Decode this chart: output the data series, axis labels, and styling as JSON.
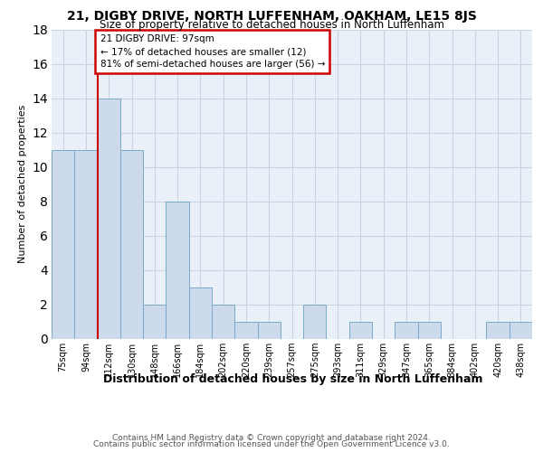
{
  "title": "21, DIGBY DRIVE, NORTH LUFFENHAM, OAKHAM, LE15 8JS",
  "subtitle": "Size of property relative to detached houses in North Luffenham",
  "xlabel": "Distribution of detached houses by size in North Luffenham",
  "ylabel": "Number of detached properties",
  "footnote1": "Contains HM Land Registry data © Crown copyright and database right 2024.",
  "footnote2": "Contains public sector information licensed under the Open Government Licence v3.0.",
  "bin_labels": [
    "75sqm",
    "94sqm",
    "112sqm",
    "130sqm",
    "148sqm",
    "166sqm",
    "184sqm",
    "202sqm",
    "220sqm",
    "239sqm",
    "257sqm",
    "275sqm",
    "293sqm",
    "311sqm",
    "329sqm",
    "347sqm",
    "365sqm",
    "384sqm",
    "402sqm",
    "420sqm",
    "438sqm"
  ],
  "values": [
    11,
    11,
    14,
    11,
    2,
    8,
    3,
    2,
    1,
    1,
    0,
    2,
    0,
    1,
    0,
    1,
    1,
    0,
    0,
    1,
    1
  ],
  "bar_color": "#ccdaeb",
  "bar_edge_color": "#7aaac8",
  "bar_edge_width": 0.7,
  "grid_color": "#c8d4e4",
  "background_color": "#eaf0f8",
  "annotation_box_color": "#cc0000",
  "annotation_line1": "21 DIGBY DRIVE: 97sqm",
  "annotation_line2": "← 17% of detached houses are smaller (12)",
  "annotation_line3": "81% of semi-detached houses are larger (56) →",
  "red_line_x": 1.5,
  "ylim": [
    0,
    18
  ],
  "yticks": [
    0,
    2,
    4,
    6,
    8,
    10,
    12,
    14,
    16,
    18
  ],
  "title_fontsize": 10,
  "subtitle_fontsize": 8.5,
  "ylabel_fontsize": 8,
  "xlabel_fontsize": 9,
  "tick_fontsize": 7,
  "footnote_fontsize": 6.5
}
